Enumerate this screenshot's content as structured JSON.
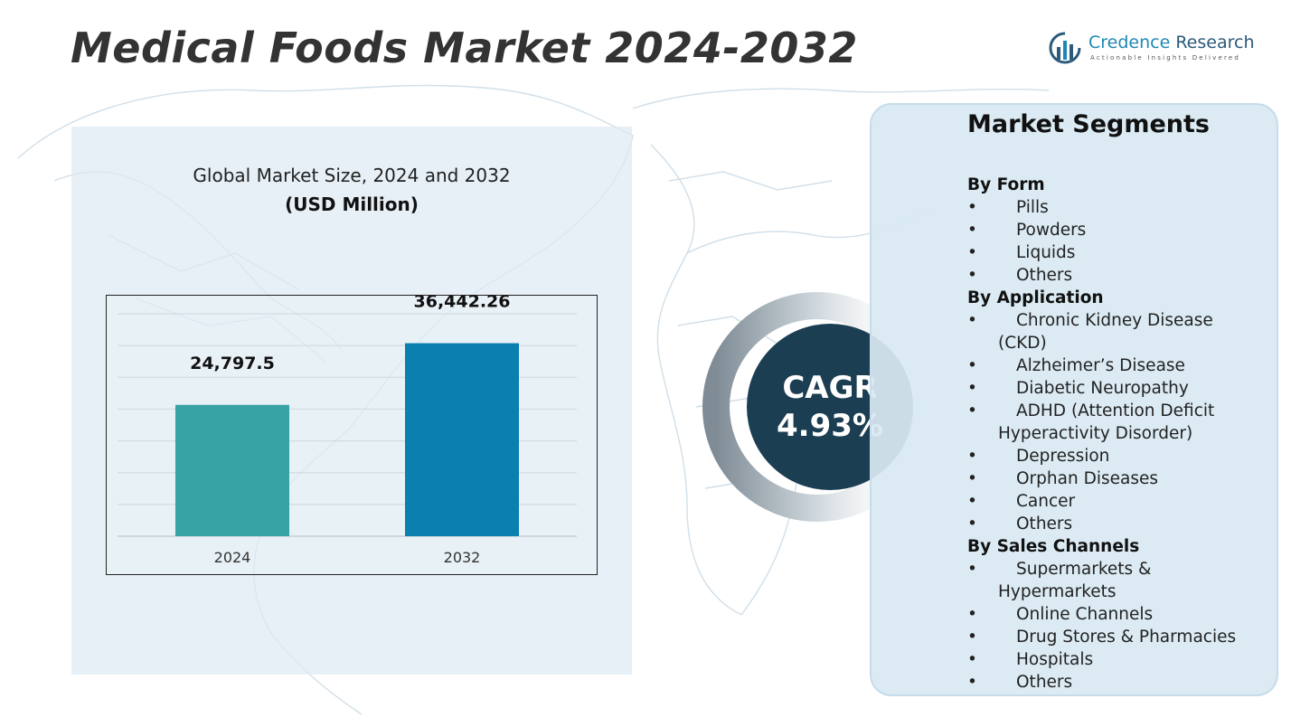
{
  "title": "Medical Foods Market 2024-2032",
  "logo": {
    "name_part1": "Credence",
    "name_part2": "Research",
    "tagline": "Actionable Insights Delivered",
    "icon": "bar-chart-circle-icon"
  },
  "colors": {
    "bar_2024": "#38a3a5",
    "bar_2032": "#0b7fb0",
    "cagr_bg": "#1c3e52",
    "panel_bg": "#dceaf2"
  },
  "chart_data": {
    "type": "bar",
    "title": "Global Market Size, 2024 and 2032",
    "subtitle": "(USD Million)",
    "categories": [
      "2024",
      "2032"
    ],
    "values": [
      24797.5,
      36442.26
    ],
    "value_labels": [
      "24,797.5",
      "36,442.26"
    ],
    "xlabel": "",
    "ylabel": "",
    "ylim": [
      0,
      42000
    ],
    "grid": true
  },
  "cagr": {
    "label": "CAGR",
    "value": "4.93%"
  },
  "segments": {
    "title": "Market Segments",
    "groups": [
      {
        "label": "By Form",
        "items": [
          "Pills",
          "Powders",
          "Liquids",
          "Others"
        ]
      },
      {
        "label": "By Application",
        "items": [
          "Chronic Kidney Disease (CKD)",
          "Alzheimer’s Disease",
          "Diabetic Neuropathy",
          "ADHD (Attention Deficit Hyperactivity Disorder)",
          "Depression",
          "Orphan Diseases",
          "Cancer",
          "Others"
        ]
      },
      {
        "label": "By Sales Channels",
        "items": [
          "Supermarkets & Hypermarkets",
          "Online Channels",
          "Drug Stores & Pharmacies",
          "Hospitals",
          "Others"
        ]
      }
    ]
  }
}
